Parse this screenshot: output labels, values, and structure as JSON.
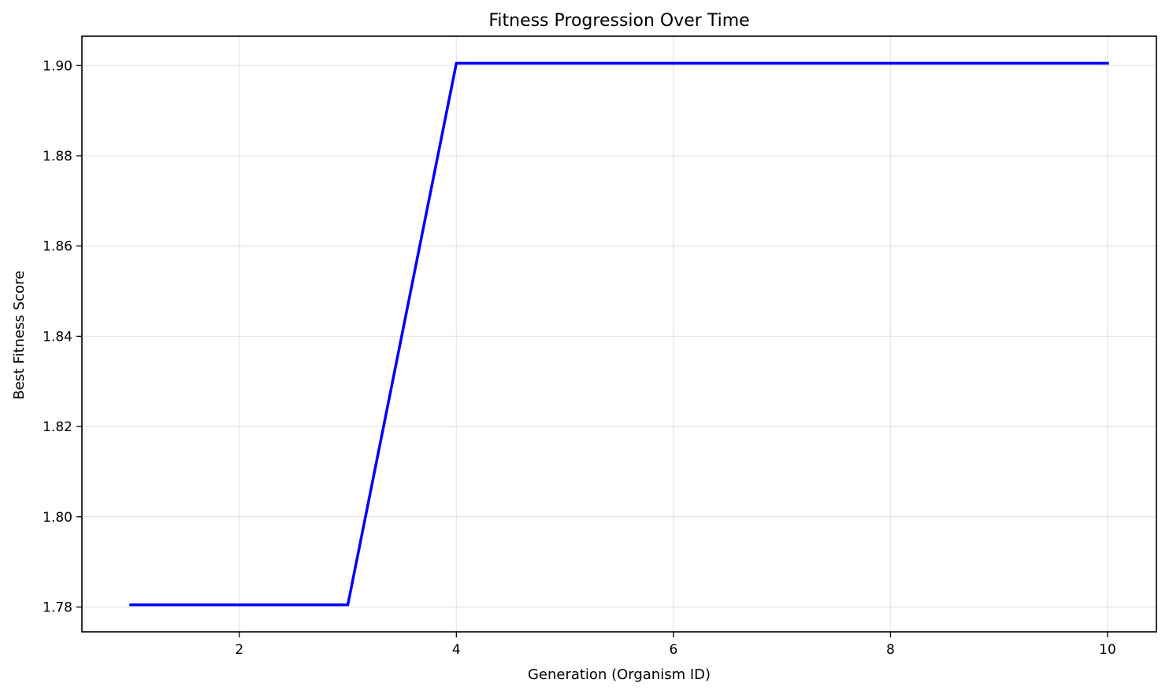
{
  "chart_data": {
    "type": "line",
    "title": "Fitness Progression Over Time",
    "xlabel": "Generation (Organism ID)",
    "ylabel": "Best Fitness Score",
    "x": [
      1,
      2,
      3,
      4,
      5,
      6,
      7,
      8,
      9,
      10
    ],
    "series": [
      {
        "values": [
          1.7805,
          1.7805,
          1.7805,
          1.9005,
          1.9005,
          1.9005,
          1.9005,
          1.9005,
          1.9005,
          1.9005
        ],
        "color": "#0000ff"
      }
    ],
    "xlim": [
      0.55,
      10.45
    ],
    "ylim": [
      1.7745,
      1.9065
    ],
    "xticks": [
      2,
      4,
      6,
      8,
      10
    ],
    "xtick_labels": [
      "2",
      "4",
      "6",
      "8",
      "10"
    ],
    "yticks": [
      1.78,
      1.8,
      1.82,
      1.84,
      1.86,
      1.88,
      1.9
    ],
    "ytick_labels": [
      "1.78",
      "1.80",
      "1.82",
      "1.84",
      "1.86",
      "1.88",
      "1.90"
    ],
    "grid": true,
    "legend": "none"
  }
}
